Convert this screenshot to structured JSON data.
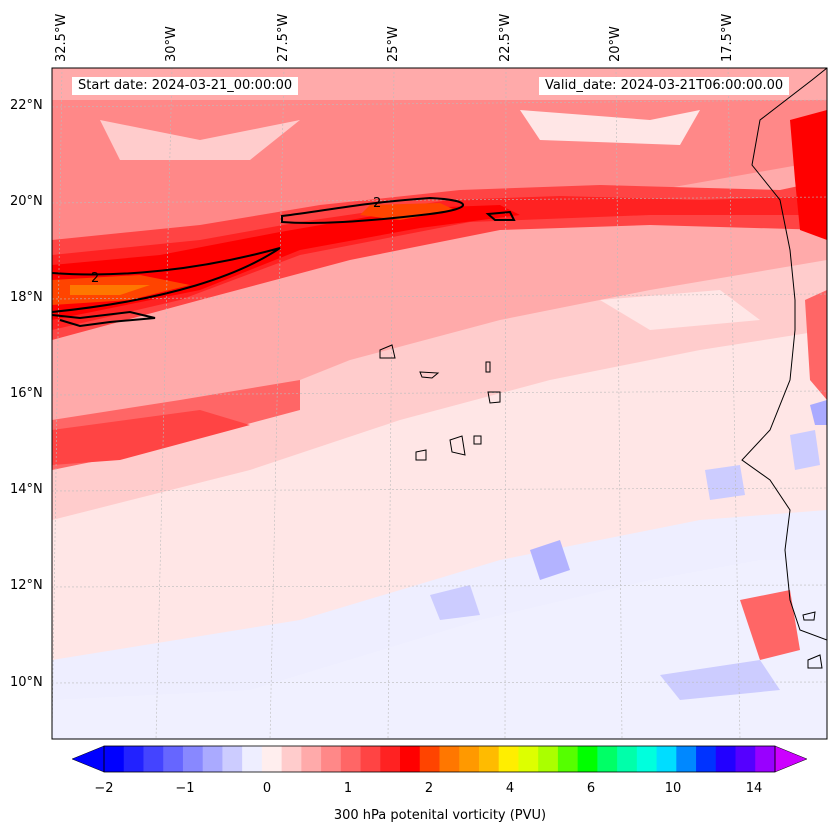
{
  "map": {
    "start_date_label": "Start date: 2024-03-21_00:00:00",
    "valid_date_label": "Valid_date: 2024-03-21T06:00:00.00",
    "lon_ticks": [
      "32.5°W",
      "30°W",
      "27.5°W",
      "25°W",
      "22.5°W",
      "20°W",
      "17.5°W"
    ],
    "lat_ticks": [
      "22°N",
      "20°N",
      "18°N",
      "16°N",
      "14°N",
      "12°N",
      "10°N"
    ],
    "contour_label": "2",
    "colors": {
      "strong_pv": "#ff0000",
      "medium_pv": "#ff6666",
      "weak_pv": "#ffb3b3",
      "faint_pv": "#ffe6e6",
      "negative_pv": "#eeeeff",
      "negative_pv_strong": "#b3b3ff",
      "coastline": "#000000"
    }
  },
  "colorbar": {
    "label": "300 hPa potenital vorticity (PVU)",
    "ticks": [
      "−2",
      "−1",
      "0",
      "1",
      "2",
      "4",
      "6",
      "10",
      "14"
    ],
    "colors": [
      "#0000ff",
      "#2222ff",
      "#4444ff",
      "#6666ff",
      "#8888ff",
      "#aaaaff",
      "#ccccff",
      "#eeeeff",
      "#ffeeee",
      "#ffcccc",
      "#ffaaaa",
      "#ff8888",
      "#ff6666",
      "#ff4444",
      "#ff2222",
      "#ff0000",
      "#ff4400",
      "#ff7700",
      "#ff9900",
      "#ffbb00",
      "#ffee00",
      "#ddff00",
      "#aaff00",
      "#55ff00",
      "#00ff00",
      "#00ff66",
      "#00ffaa",
      "#00ffdd",
      "#00ddff",
      "#0088ff",
      "#0033ff",
      "#2200ff",
      "#5500ff",
      "#9900ff"
    ],
    "under_color": "#0000ff",
    "over_color": "#cc00ff"
  }
}
